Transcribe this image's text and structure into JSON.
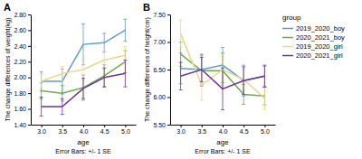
{
  "chart_data": [
    {
      "type": "line",
      "title": "A",
      "xlabel": "age",
      "ylabel": "The change differences of weight(kg)",
      "annotation": "Error Bars: +/- 1 SE",
      "grid": false,
      "x": [
        3.0,
        3.5,
        4.0,
        4.5,
        5.0
      ],
      "xlim": [
        2.75,
        5.25
      ],
      "xticks": [
        {
          "value": 3.0,
          "label": "3.0"
        },
        3.5,
        {
          "value": 4.0,
          "label": "4.0"
        },
        4.5,
        {
          "value": 5.0,
          "label": "5.0"
        }
      ],
      "ylim": [
        1.4,
        2.8
      ],
      "yticks": [
        {
          "value": 1.4,
          "label": "1.40"
        },
        {
          "value": 1.6,
          "label": "1.60"
        },
        {
          "value": 1.8,
          "label": "1.80"
        },
        {
          "value": 2.0,
          "label": "2.00"
        },
        {
          "value": 2.2,
          "label": "2.20"
        },
        {
          "value": 2.4,
          "label": "2.40"
        },
        {
          "value": 2.6,
          "label": "2.60"
        },
        {
          "value": 2.8,
          "label": "2.80"
        }
      ],
      "series": [
        {
          "name": "2019_2020_boy",
          "color": "#5b9bd5",
          "values": [
            1.95,
            1.95,
            2.42,
            2.44,
            2.6
          ],
          "errors": [
            0.12,
            0.16,
            0.26,
            0.12,
            0.14
          ]
        },
        {
          "name": "2020_2021_boy",
          "color": "#70ad47",
          "values": [
            1.83,
            1.8,
            1.87,
            2.02,
            2.2
          ],
          "errors": [
            0.1,
            0.1,
            0.16,
            0.14,
            0.14
          ]
        },
        {
          "name": "2019_2020_girl",
          "color": "#e8d88a",
          "values": [
            1.95,
            2.05,
            2.1,
            2.22,
            2.28
          ],
          "errors": [
            0.09,
            0.09,
            0.13,
            0.11,
            0.11
          ]
        },
        {
          "name": "2020_2021_girl",
          "color": "#7030a0",
          "values": [
            1.63,
            1.63,
            1.86,
            2.0,
            2.05
          ],
          "errors": [
            0.12,
            0.1,
            0.13,
            0.12,
            0.17
          ]
        }
      ]
    },
    {
      "type": "line",
      "title": "B",
      "xlabel": "age",
      "ylabel": "The change differences of height(cm)",
      "annotation": "Error Bars: +/- 1 SE",
      "grid": false,
      "legend": "right",
      "legend_title": "group",
      "x": [
        3.0,
        3.5,
        4.0,
        4.5,
        5.0
      ],
      "xlim": [
        2.75,
        5.25
      ],
      "xticks": [
        {
          "value": 3.0,
          "label": "3.0"
        },
        3.5,
        {
          "value": 4.0,
          "label": "4.0"
        },
        4.5,
        {
          "value": 5.0,
          "label": "5.0"
        }
      ],
      "ylim": [
        5.5,
        7.5
      ],
      "yticks": [
        {
          "value": 5.5,
          "label": "5.50"
        },
        {
          "value": 6.0,
          "label": "6.00"
        },
        {
          "value": 6.5,
          "label": "6.50"
        },
        {
          "value": 7.0,
          "label": "7.00"
        },
        {
          "value": 7.5,
          "label": "7.50"
        }
      ],
      "series": [
        {
          "name": "2019_2020_boy",
          "color": "#5b9bd5",
          "values": [
            6.52,
            6.5,
            6.58,
            6.3,
            6.38
          ],
          "errors": [
            0.28,
            0.28,
            0.32,
            0.28,
            0.18
          ]
        },
        {
          "name": "2020_2021_boy",
          "color": "#70ad47",
          "values": [
            6.78,
            6.48,
            6.48,
            6.05,
            6.02
          ],
          "errors": [
            0.22,
            0.28,
            0.32,
            0.18,
            0.16
          ]
        },
        {
          "name": "2019_2020_girl",
          "color": "#e8d88a",
          "values": [
            7.15,
            6.22,
            6.5,
            6.32,
            5.98
          ],
          "errors": [
            0.25,
            0.28,
            0.28,
            0.18,
            0.2
          ]
        },
        {
          "name": "2020_2021_girl",
          "color": "#7030a0",
          "values": [
            6.38,
            6.5,
            6.15,
            6.3,
            6.38
          ],
          "errors": [
            0.25,
            0.22,
            0.38,
            0.25,
            0.2
          ]
        }
      ]
    }
  ]
}
